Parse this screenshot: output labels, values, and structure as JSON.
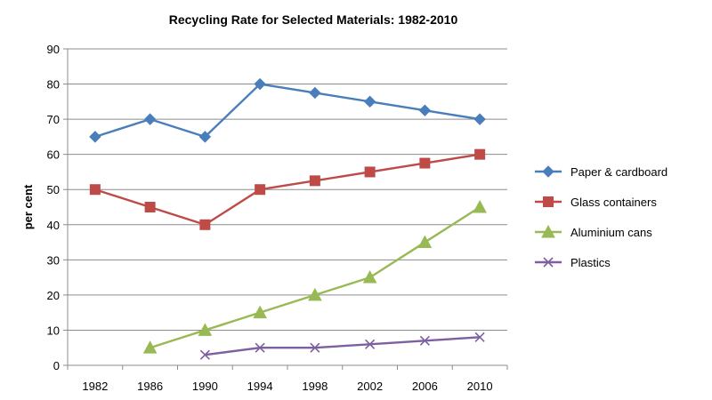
{
  "chart_data": {
    "type": "line",
    "title": "Recycling Rate for Selected Materials: 1982-2010",
    "xlabel": "",
    "ylabel": "per cent",
    "categories": [
      "1982",
      "1986",
      "1990",
      "1994",
      "1998",
      "2002",
      "2006",
      "2010"
    ],
    "ylim": [
      0,
      90
    ],
    "yticks": [
      0,
      10,
      20,
      30,
      40,
      50,
      60,
      70,
      80,
      90
    ],
    "grid": true,
    "legend_position": "right",
    "series": [
      {
        "name": "Paper & cardboard",
        "color": "#4a7ebb",
        "marker": "diamond",
        "values": [
          65,
          70,
          65,
          80,
          77.5,
          75,
          72.5,
          70
        ]
      },
      {
        "name": "Glass containers",
        "color": "#be4b48",
        "marker": "square",
        "values": [
          50,
          45,
          40,
          50,
          52.5,
          55,
          57.5,
          60
        ]
      },
      {
        "name": "Aluminium cans",
        "color": "#98b954",
        "marker": "triangle",
        "values": [
          null,
          5,
          10,
          15,
          20,
          25,
          35,
          45
        ]
      },
      {
        "name": "Plastics",
        "color": "#7d60a0",
        "marker": "x",
        "values": [
          null,
          null,
          3,
          5,
          5,
          6,
          7,
          8
        ]
      }
    ]
  }
}
